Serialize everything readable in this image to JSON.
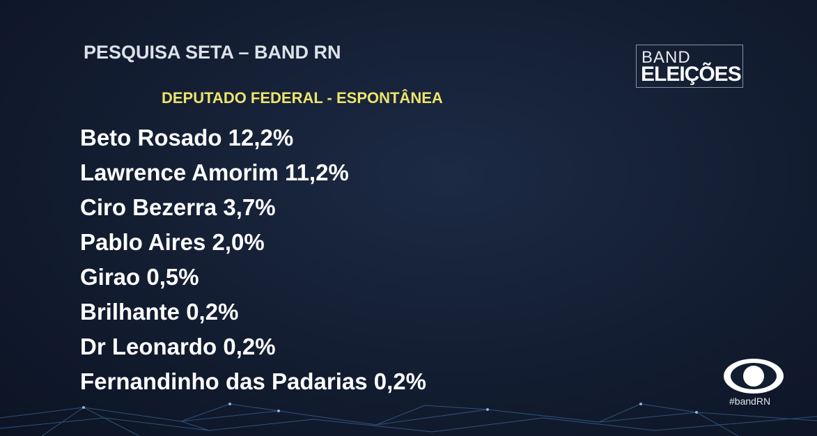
{
  "header": {
    "title": "PESQUISA SETA – BAND RN",
    "subtitle": "DEPUTADO FEDERAL - ESPONTÂNEA"
  },
  "logo": {
    "line1": "BAND",
    "line2": "ELEIÇÕES"
  },
  "items": [
    "Beto Rosado 12,2%",
    "Lawrence Amorim 11,2%",
    "Ciro Bezerra 3,7%",
    "Pablo Aires 2,0%",
    "Girao 0,5%",
    "Brilhante 0,2%",
    "Dr Leonardo 0,2%",
    "Fernandinho das Padarias 0,2%"
  ],
  "footer": {
    "hashtag": "#bandRN"
  }
}
